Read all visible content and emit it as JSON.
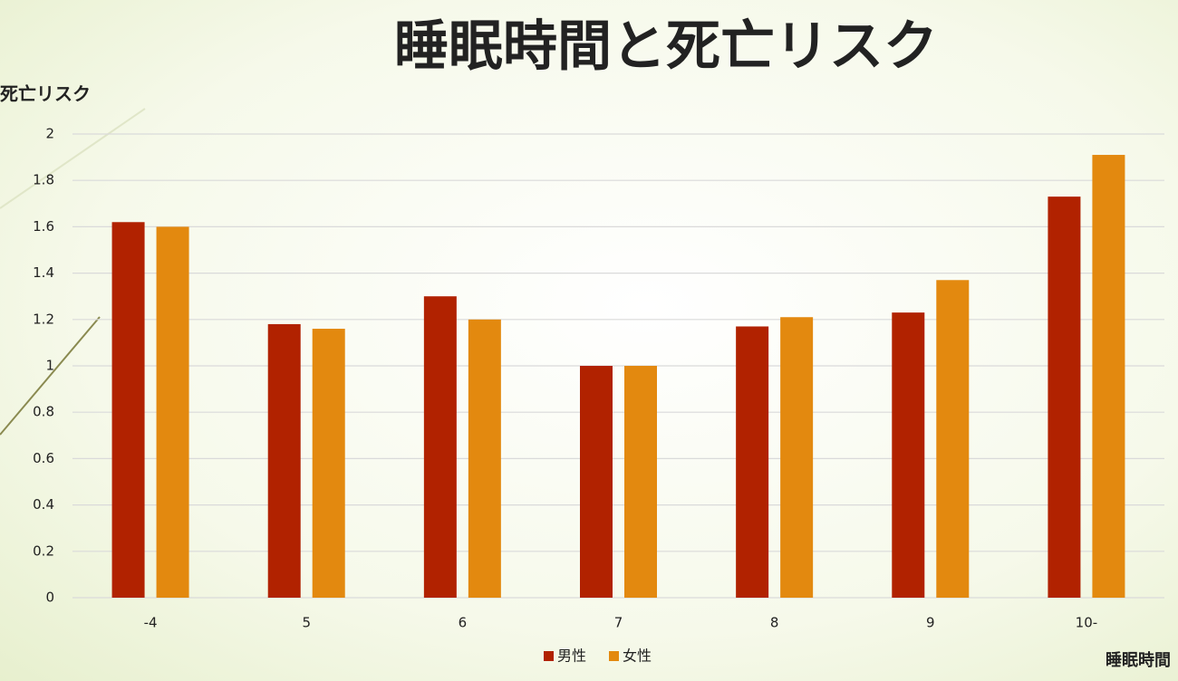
{
  "chart_data": {
    "type": "bar",
    "title": "睡眠時間と死亡リスク",
    "y_label": "死亡リスク",
    "x_label": "睡眠時間",
    "categories": [
      "-4",
      "5",
      "6",
      "7",
      "8",
      "9",
      "10-"
    ],
    "series": [
      {
        "name": "男性",
        "color": "#b12200",
        "values": [
          1.62,
          1.18,
          1.3,
          1.0,
          1.17,
          1.23,
          1.73
        ]
      },
      {
        "name": "女性",
        "color": "#e3890f",
        "values": [
          1.6,
          1.16,
          1.2,
          1.0,
          1.21,
          1.37,
          1.91
        ]
      }
    ],
    "ylim": [
      0,
      2
    ],
    "yticks": [
      0,
      0.2,
      0.4,
      0.6,
      0.8,
      1,
      1.2,
      1.4,
      1.6,
      1.8,
      2
    ],
    "grid": true,
    "legend": "bottom"
  }
}
